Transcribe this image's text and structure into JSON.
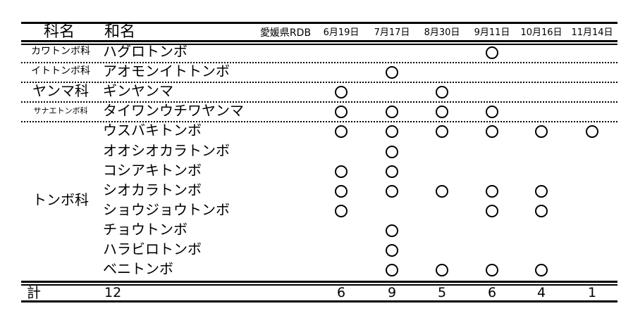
{
  "header": {
    "family": "科名",
    "name": "和名",
    "rdb": "愛媛県RDB",
    "dates": [
      "6月19日",
      "7月17日",
      "8月30日",
      "9月11日",
      "10月16日",
      "11月14日"
    ]
  },
  "families": [
    {
      "label": "カワトンボ科",
      "species": [
        {
          "name": "ハグロトンボ",
          "obs": [
            0,
            0,
            0,
            1,
            0,
            0
          ]
        }
      ]
    },
    {
      "label": "イトトンボ科",
      "species": [
        {
          "name": "アオモンイトトンボ",
          "obs": [
            0,
            1,
            0,
            0,
            0,
            0
          ]
        }
      ]
    },
    {
      "label": "ヤンマ科",
      "species": [
        {
          "name": "ギンヤンマ",
          "obs": [
            1,
            0,
            1,
            0,
            0,
            0
          ]
        }
      ]
    },
    {
      "label": "サナエトンボ科",
      "species": [
        {
          "name": "タイワンウチワヤンマ",
          "obs": [
            1,
            1,
            1,
            1,
            0,
            0
          ]
        }
      ]
    },
    {
      "label": "トンボ科",
      "species": [
        {
          "name": "ウスバキトンボ",
          "obs": [
            1,
            1,
            1,
            1,
            1,
            1
          ]
        },
        {
          "name": "オオシオカラトンボ",
          "obs": [
            0,
            1,
            0,
            0,
            0,
            0
          ]
        },
        {
          "name": "コシアキトンボ",
          "obs": [
            1,
            1,
            0,
            0,
            0,
            0
          ]
        },
        {
          "name": "シオカラトンボ",
          "obs": [
            1,
            1,
            1,
            1,
            1,
            0
          ]
        },
        {
          "name": "ショウジョウトンボ",
          "obs": [
            1,
            0,
            0,
            1,
            1,
            0
          ]
        },
        {
          "name": "チョウトンボ",
          "obs": [
            0,
            1,
            0,
            0,
            0,
            0
          ]
        },
        {
          "name": "ハラビロトンボ",
          "obs": [
            0,
            1,
            0,
            0,
            0,
            0
          ]
        },
        {
          "name": "ベニトンボ",
          "obs": [
            0,
            1,
            1,
            1,
            1,
            0
          ]
        }
      ]
    }
  ],
  "total": {
    "label": "計",
    "species_count": "12",
    "counts": [
      "6",
      "9",
      "5",
      "6",
      "4",
      "1"
    ]
  }
}
